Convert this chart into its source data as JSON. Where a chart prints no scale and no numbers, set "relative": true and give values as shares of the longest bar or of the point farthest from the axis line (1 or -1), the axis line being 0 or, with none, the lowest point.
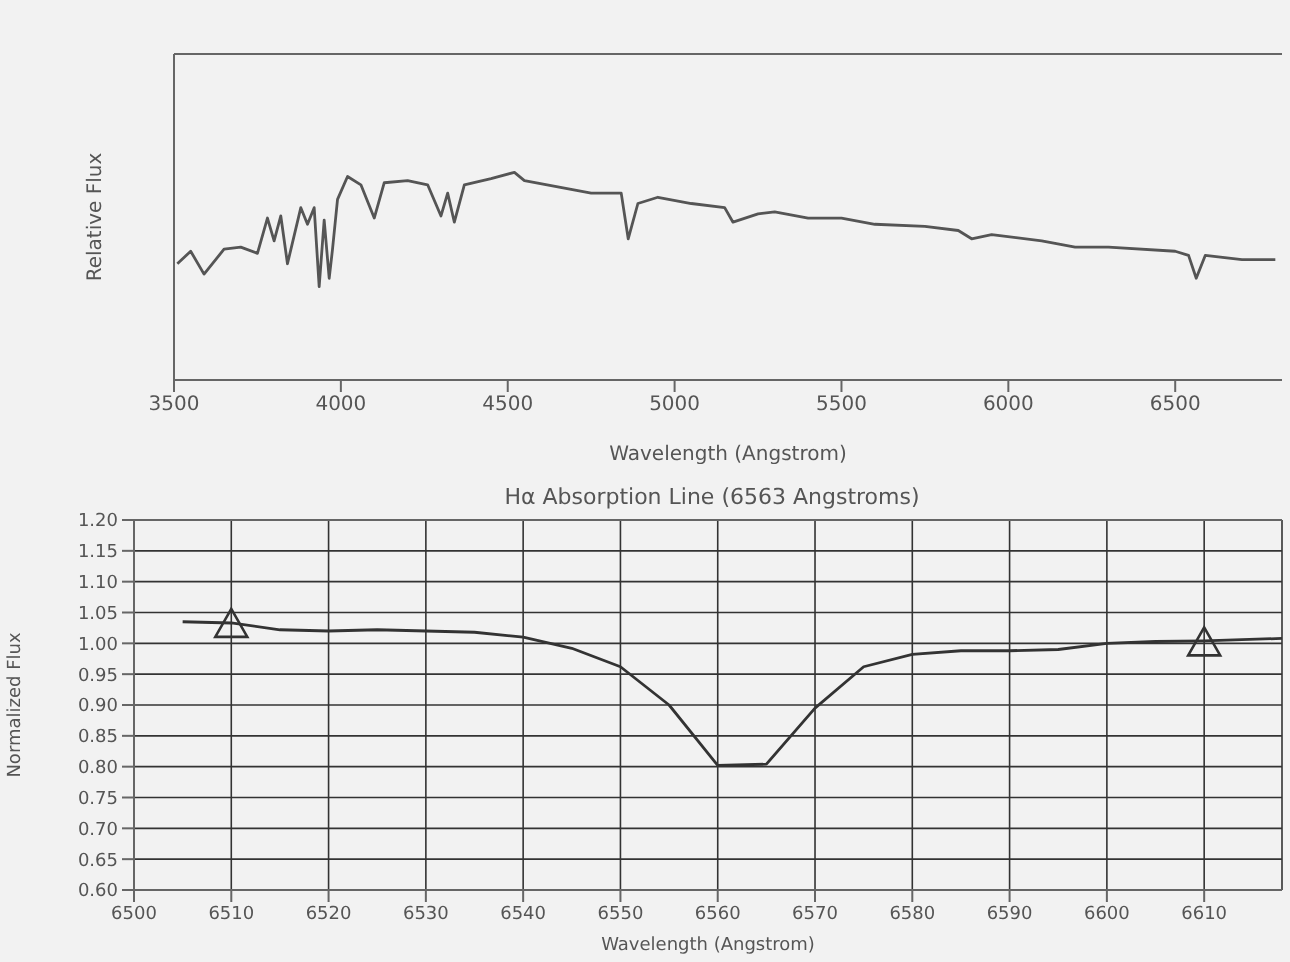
{
  "chart_data": [
    {
      "type": "line",
      "relative": true,
      "xlabel": "Wavelength (Angstrom)",
      "ylabel": "Relative Flux",
      "tick_labels": "x",
      "xlim": [
        3500,
        6820
      ],
      "xticks": [
        3500,
        4000,
        4500,
        5000,
        5500,
        6000,
        6500
      ],
      "color": "#555555",
      "x": [
        3510,
        3550,
        3590,
        3650,
        3700,
        3750,
        3780,
        3800,
        3820,
        3840,
        3880,
        3900,
        3920,
        3935,
        3950,
        3965,
        3975,
        3990,
        4020,
        4060,
        4100,
        4130,
        4200,
        4260,
        4300,
        4320,
        4340,
        4370,
        4450,
        4520,
        4550,
        4650,
        4750,
        4840,
        4861,
        4890,
        4950,
        5050,
        5150,
        5175,
        5250,
        5300,
        5400,
        5500,
        5600,
        5750,
        5850,
        5890,
        5950,
        6100,
        6200,
        6300,
        6500,
        6540,
        6563,
        6590,
        6700,
        6800
      ],
      "values": [
        0.56,
        0.62,
        0.51,
        0.63,
        0.64,
        0.61,
        0.78,
        0.67,
        0.79,
        0.56,
        0.83,
        0.75,
        0.83,
        0.45,
        0.77,
        0.49,
        0.63,
        0.87,
        0.98,
        0.94,
        0.78,
        0.95,
        0.96,
        0.94,
        0.79,
        0.9,
        0.76,
        0.94,
        0.97,
        1,
        0.96,
        0.93,
        0.9,
        0.9,
        0.68,
        0.85,
        0.88,
        0.85,
        0.83,
        0.76,
        0.8,
        0.81,
        0.78,
        0.78,
        0.75,
        0.74,
        0.72,
        0.68,
        0.7,
        0.67,
        0.64,
        0.64,
        0.62,
        0.6,
        0.49,
        0.6,
        0.58,
        0.58
      ]
    },
    {
      "type": "line",
      "title": "Hα Absorption Line (6563 Angstroms)",
      "xlabel": "Wavelength (Angstrom)",
      "ylabel": "Normalized Flux",
      "grid": true,
      "xlim": [
        6500,
        6618
      ],
      "xticks": [
        6500,
        6510,
        6520,
        6530,
        6540,
        6550,
        6560,
        6570,
        6580,
        6590,
        6600,
        6610
      ],
      "ylim": [
        0.6,
        1.2
      ],
      "yticks": [
        {
          "value": 0.6,
          "label": "0.60"
        },
        {
          "value": 0.65,
          "label": "0.65"
        },
        {
          "value": 0.7,
          "label": "0.70"
        },
        {
          "value": 0.75,
          "label": "0.75"
        },
        {
          "value": 0.8,
          "label": "0.80"
        },
        {
          "value": 0.85,
          "label": "0.85"
        },
        {
          "value": 0.9,
          "label": "0.90"
        },
        {
          "value": 0.95,
          "label": "0.95"
        },
        {
          "value": 1.0,
          "label": "1.00"
        },
        {
          "value": 1.05,
          "label": "1.05"
        },
        {
          "value": 1.1,
          "label": "1.10"
        },
        {
          "value": 1.15,
          "label": "1.15"
        },
        {
          "value": 1.2,
          "label": "1.20"
        }
      ],
      "series": [
        {
          "type": "line",
          "color": "#333333",
          "x": [
            6505,
            6510,
            6515,
            6520,
            6525,
            6530,
            6535,
            6540,
            6545,
            6550,
            6555,
            6560,
            6565,
            6570,
            6575,
            6580,
            6585,
            6590,
            6595,
            6600,
            6605,
            6610,
            6618
          ],
          "values": [
            1.035,
            1.033,
            1.022,
            1.02,
            1.022,
            1.02,
            1.018,
            1.01,
            0.992,
            0.962,
            0.9,
            0.802,
            0.804,
            0.895,
            0.962,
            0.982,
            0.988,
            0.988,
            0.99,
            1.0,
            1.003,
            1.004,
            1.008
          ]
        },
        {
          "type": "scatter",
          "marker": "triangle",
          "color": "#333333",
          "x": [
            6510,
            6610
          ],
          "values": [
            1.03,
            1.0
          ]
        }
      ]
    }
  ]
}
